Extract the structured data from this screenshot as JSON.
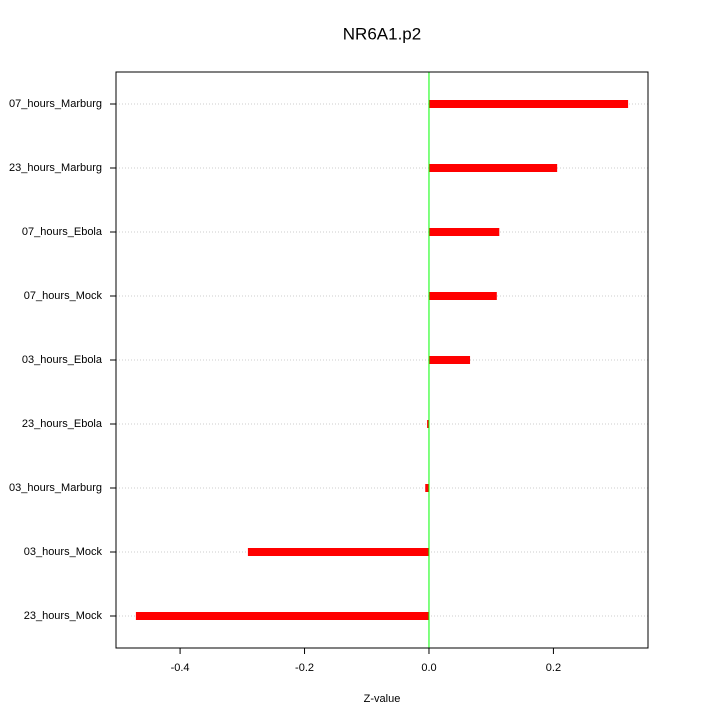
{
  "chart_data": {
    "type": "bar",
    "orientation": "horizontal",
    "title": "NR6A1.p2",
    "x_label": "Z-value",
    "categories": [
      "07_hours_Marburg",
      "23_hours_Marburg",
      "07_hours_Ebola",
      "07_hours_Mock",
      "03_hours_Ebola",
      "23_hours_Ebola",
      "03_hours_Marburg",
      "03_hours_Mock",
      "23_hours_Mock"
    ],
    "values": [
      0.32,
      0.206,
      0.113,
      0.109,
      0.066,
      -0.003,
      -0.006,
      -0.291,
      -0.471
    ],
    "color": "#ff0000",
    "xlim": [
      -0.503,
      0.352
    ],
    "xticks": [
      -0.4,
      -0.2,
      {
        "value": 0,
        "label": "0.0"
      },
      0.2
    ],
    "grid": true
  }
}
